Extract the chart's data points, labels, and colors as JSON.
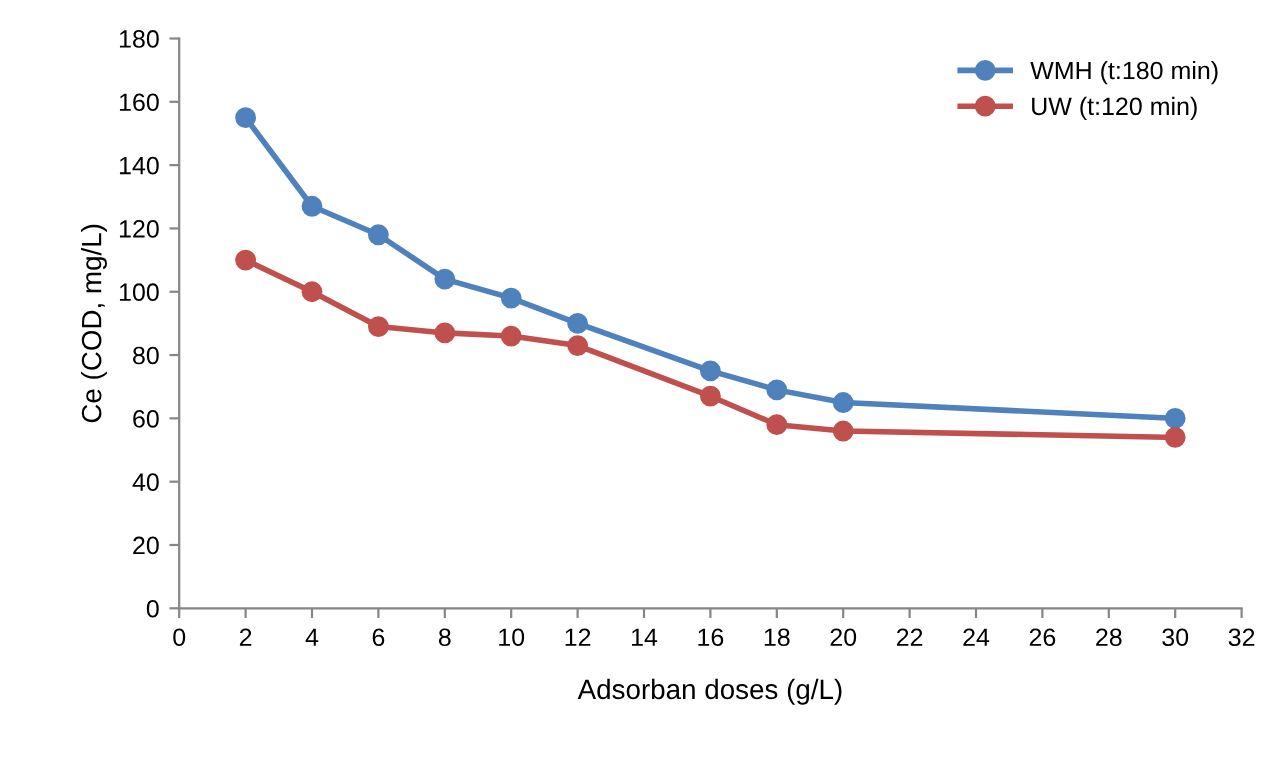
{
  "chart_data": {
    "type": "line",
    "xlabel": "Adsorban doses (g/L)",
    "ylabel": "Ce (COD, mg/L)",
    "xlim": [
      0,
      32
    ],
    "xticks": [
      0,
      2,
      4,
      6,
      8,
      10,
      12,
      14,
      16,
      18,
      20,
      22,
      24,
      26,
      28,
      30,
      32
    ],
    "ylim": [
      0,
      180
    ],
    "yticks": [
      0,
      20,
      40,
      60,
      80,
      100,
      120,
      140,
      160,
      180
    ],
    "x": [
      2,
      4,
      6,
      8,
      10,
      12,
      16,
      18,
      20,
      30
    ],
    "series": [
      {
        "name": "WMH (t:180 min)",
        "color": "#4f81bd",
        "values": [
          155,
          127,
          118,
          104,
          98,
          90,
          75,
          69,
          65,
          60
        ]
      },
      {
        "name": "UW (t:120 min)",
        "color": "#c0504d",
        "values": [
          110,
          100,
          89,
          87,
          86,
          83,
          67,
          58,
          56,
          54
        ]
      }
    ],
    "marker": "circle",
    "line_style": "solid",
    "grid": false,
    "legend": "top right"
  }
}
